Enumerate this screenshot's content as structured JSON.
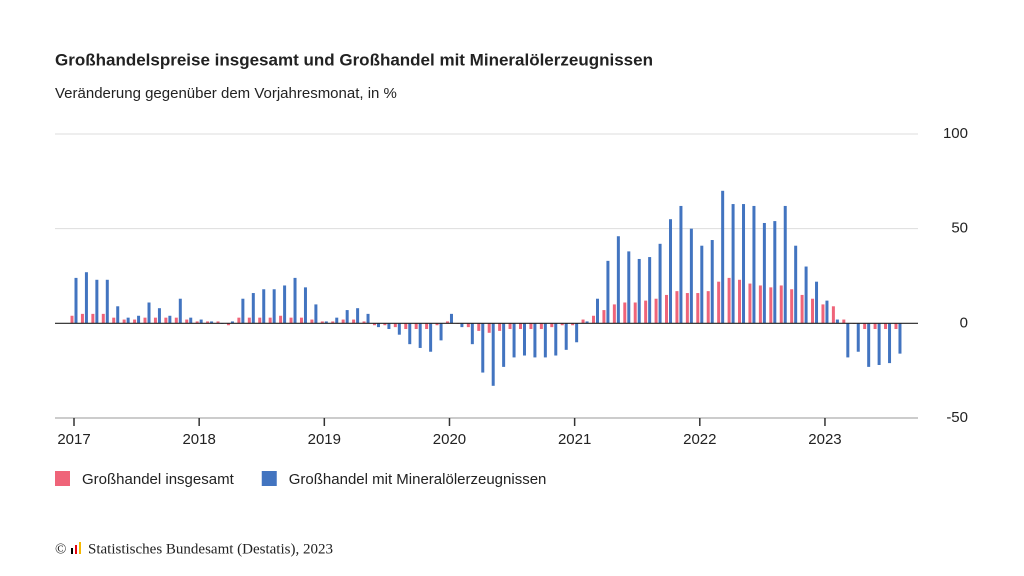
{
  "chart_data": {
    "type": "bar",
    "title": "Großhandelspreise insgesamt und Großhandel mit Mineralölerzeugnissen",
    "subtitle": "Veränderung gegenüber dem Vorjahresmonat, in %",
    "categories": [
      "2017",
      null,
      null,
      null,
      null,
      null,
      null,
      null,
      null,
      null,
      null,
      null,
      "2018",
      null,
      null,
      null,
      null,
      null,
      null,
      null,
      null,
      null,
      null,
      null,
      "2019",
      null,
      null,
      null,
      null,
      null,
      null,
      null,
      null,
      null,
      null,
      null,
      "2020",
      null,
      null,
      null,
      null,
      null,
      null,
      null,
      null,
      null,
      null,
      null,
      "2021",
      null,
      null,
      null,
      null,
      null,
      null,
      null,
      null,
      null,
      null,
      null,
      "2022",
      null,
      null,
      null,
      null,
      null,
      null,
      null,
      null,
      null,
      null,
      null,
      "2023",
      null,
      null,
      null,
      null,
      null,
      null,
      null
    ],
    "series": [
      {
        "name": "Großhandel insgesamt",
        "color": "#ef6479",
        "values": [
          4,
          5,
          5,
          5,
          3,
          2,
          2,
          3,
          3,
          3,
          3,
          2,
          1,
          1,
          1,
          -1,
          3,
          3,
          3,
          3,
          4,
          3,
          3,
          2,
          1,
          1,
          2,
          2,
          1,
          -1,
          -1,
          -2,
          -3,
          -3,
          -3,
          -1,
          1,
          0,
          -2,
          -4,
          -5,
          -4,
          -3,
          -3,
          -3,
          -3,
          -2,
          -1,
          -1,
          2,
          4,
          7,
          10,
          11,
          11,
          12,
          13,
          15,
          17,
          16,
          16,
          17,
          22,
          24,
          23,
          21,
          20,
          19,
          20,
          18,
          15,
          13,
          10,
          9,
          2,
          0,
          -3,
          -3,
          -3,
          -3
        ]
      },
      {
        "name": "Großhandel mit Mineralölerzeugnissen",
        "color": "#4274c0",
        "values": [
          24,
          27,
          23,
          23,
          9,
          3,
          4,
          11,
          8,
          4,
          13,
          3,
          2,
          1,
          0,
          1,
          13,
          16,
          18,
          18,
          20,
          24,
          19,
          10,
          1,
          3,
          7,
          8,
          5,
          -2,
          -3,
          -6,
          -11,
          -13,
          -15,
          -9,
          5,
          -2,
          -11,
          -26,
          -33,
          -23,
          -18,
          -17,
          -18,
          -18,
          -17,
          -14,
          -10,
          1,
          13,
          33,
          46,
          38,
          34,
          35,
          42,
          55,
          62,
          50,
          41,
          44,
          70,
          63,
          63,
          62,
          53,
          54,
          62,
          41,
          30,
          22,
          12,
          2,
          -18,
          -15,
          -23,
          -22,
          -21,
          -16
        ]
      }
    ],
    "ylim": [
      -50,
      100
    ],
    "yticks": [
      -50,
      0,
      50,
      100
    ],
    "grid": true,
    "source": "Statistisches Bundesamt (Destatis), 2023",
    "copyright": "©"
  }
}
